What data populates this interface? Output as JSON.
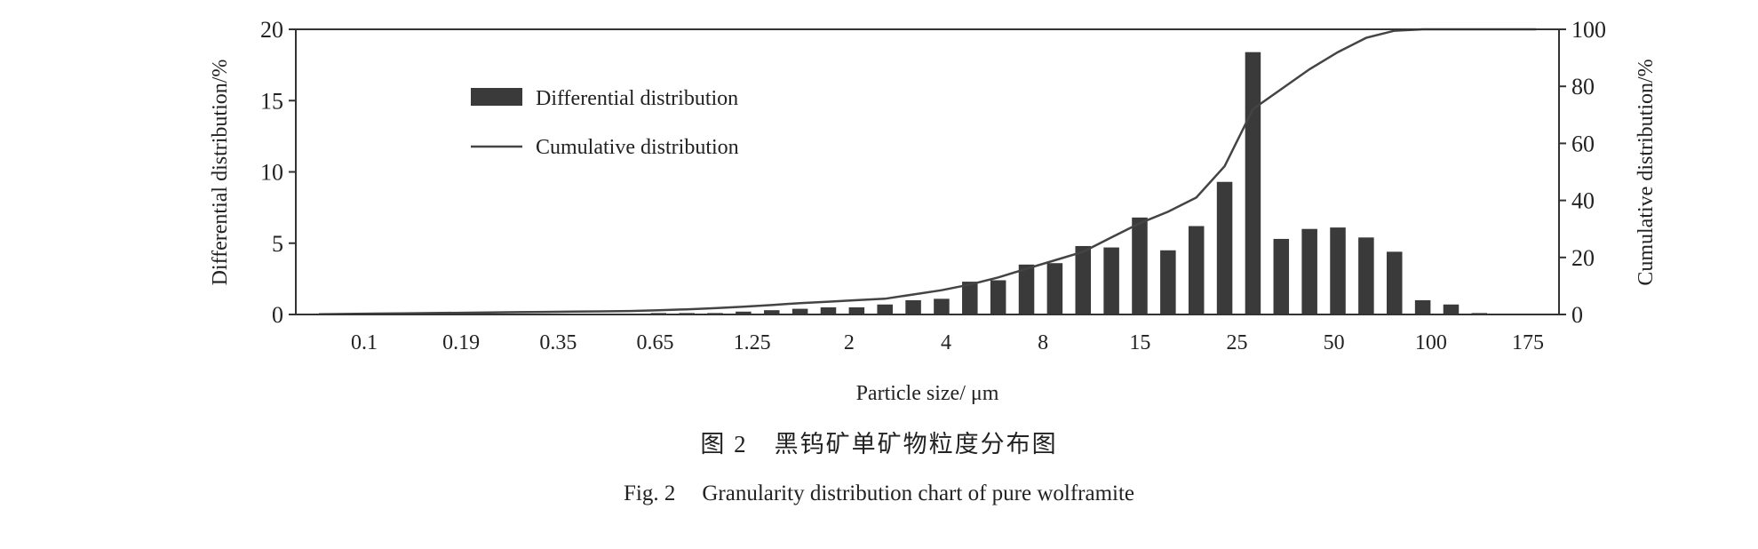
{
  "chart_data": {
    "type": "bar",
    "xlabel": "Particle size/ μm",
    "ylabel_left": "Differential distribution/%",
    "ylabel_right": "Cumulative distribution/%",
    "ylim_left": [
      0,
      20
    ],
    "ylim_right": [
      0,
      100
    ],
    "yticks_left": [
      0,
      5,
      10,
      15,
      20
    ],
    "yticks_right": [
      0,
      20,
      40,
      60,
      80,
      100
    ],
    "x_tick_labels": [
      "0.1",
      "0.19",
      "0.35",
      "0.65",
      "1.25",
      "2",
      "4",
      "8",
      "15",
      "25",
      "50",
      "100",
      "175"
    ],
    "grid": false,
    "legend_position": "top-left",
    "series": [
      {
        "name": "Differential distribution",
        "kind": "bar",
        "color": "#3a3a3a",
        "values": [
          0.05,
          0.05,
          0.05,
          0.05,
          0.05,
          0.05,
          0.05,
          0.05,
          0.05,
          0.05,
          0.05,
          0.05,
          0.1,
          0.1,
          0.1,
          0.2,
          0.3,
          0.4,
          0.5,
          0.5,
          0.7,
          1.0,
          1.1,
          2.3,
          2.4,
          3.5,
          3.6,
          4.8,
          4.7,
          6.8,
          4.5,
          6.2,
          9.3,
          18.4,
          5.3,
          6.0,
          6.1,
          5.4,
          4.4,
          1.0,
          0.7,
          0.1,
          0.05,
          0.05
        ]
      },
      {
        "name": "Cumulative distribution",
        "kind": "line",
        "color": "#444444",
        "values": [
          0.1,
          0.2,
          0.3,
          0.4,
          0.5,
          0.6,
          0.7,
          0.8,
          0.9,
          1.0,
          1.1,
          1.2,
          1.5,
          1.8,
          2.2,
          2.7,
          3.3,
          4.0,
          4.5,
          5.0,
          5.5,
          7.0,
          8.5,
          10.5,
          13.0,
          16.0,
          19.0,
          22.0,
          27.0,
          32.0,
          36.0,
          41.0,
          52.0,
          72.0,
          79.0,
          86.0,
          92.0,
          97.0,
          99.5,
          100.0,
          100.0,
          100.0,
          100.0,
          100.0
        ]
      }
    ]
  },
  "caption": {
    "cn_number": "图 2",
    "cn_text": "黑钨矿单矿物粒度分布图",
    "en_number": "Fig. 2",
    "en_text": "Granularity distribution chart of pure wolframite"
  }
}
